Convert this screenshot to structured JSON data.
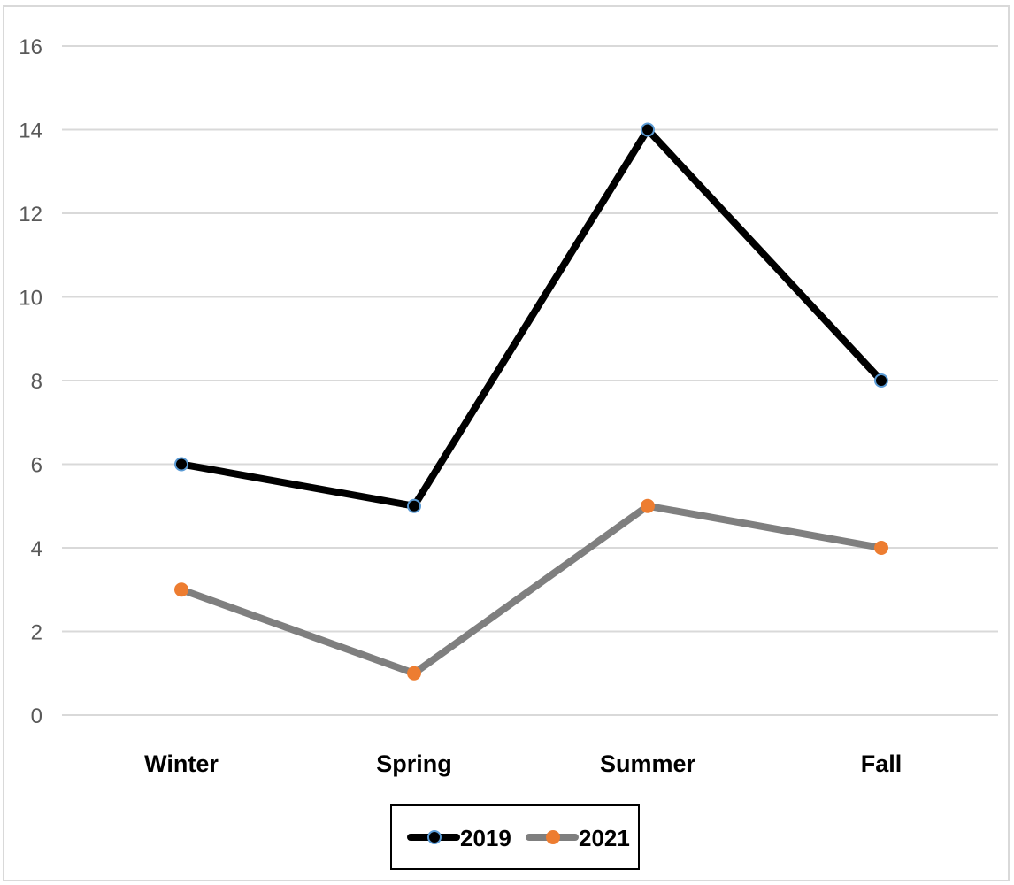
{
  "chart_data": {
    "type": "line",
    "title": "",
    "xlabel": "",
    "ylabel": "",
    "categories": [
      "Winter",
      "Spring",
      "Summer",
      "Fall"
    ],
    "ylim": [
      0,
      16
    ],
    "yticks": [
      "0",
      "2",
      "4",
      "6",
      "8",
      "10",
      "12",
      "14",
      "16"
    ],
    "grid": true,
    "legend": "bottom-center",
    "series": [
      {
        "name": "2019",
        "values": [
          6,
          5,
          14,
          8
        ],
        "line_color": "#000000",
        "marker_fill": "#000000",
        "marker_edge": "#5b9bd5"
      },
      {
        "name": "2021",
        "values": [
          3,
          1,
          5,
          4
        ],
        "line_color": "#7f7f7f",
        "marker_fill": "#ed7d31",
        "marker_edge": "#ed7d31"
      }
    ],
    "colors": {
      "gridline": "#d9d9d9",
      "frame": "#d9d9d9",
      "legend_border": "#000000"
    }
  }
}
